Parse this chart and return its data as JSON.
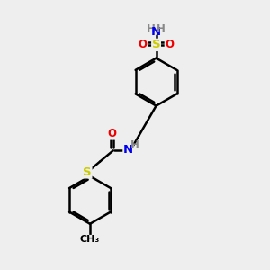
{
  "bg_color": "#eeeeee",
  "atom_colors": {
    "C": "#000000",
    "N": "#0000ee",
    "O": "#ee0000",
    "S": "#cccc00",
    "H": "#888888"
  },
  "bond_color": "#000000",
  "bond_width": 1.8,
  "figsize": [
    3.0,
    3.0
  ],
  "dpi": 100,
  "xlim": [
    0,
    10
  ],
  "ylim": [
    0,
    10
  ],
  "font_size": 8.5
}
